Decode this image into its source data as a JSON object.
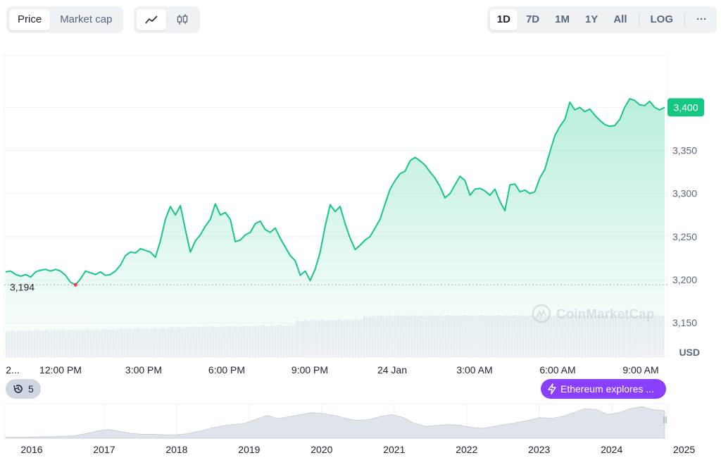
{
  "toolbar": {
    "metric_tabs": [
      {
        "label": "Price",
        "active": true
      },
      {
        "label": "Market cap",
        "active": false
      }
    ],
    "chart_type_icons": [
      "line-chart-icon",
      "candlestick-icon"
    ],
    "ranges": [
      {
        "label": "1D",
        "active": true
      },
      {
        "label": "7D",
        "active": false
      },
      {
        "label": "1M",
        "active": false
      },
      {
        "label": "1Y",
        "active": false
      },
      {
        "label": "All",
        "active": false
      }
    ],
    "log_label": "LOG",
    "more_label": "···"
  },
  "watermark": "CoinMarketCap",
  "currency_label": "USD",
  "event_badge": {
    "icon": "history-icon",
    "count": "5"
  },
  "news_badge": {
    "icon": "lightning-icon",
    "label": "Ethereum explores ..."
  },
  "colors": {
    "line": "#16c784",
    "current_label": "#16c784",
    "low_dot": "#ea3943",
    "news_badge": "#8a3ffc",
    "grid": "#eff2f5",
    "axis_text": "#58667e"
  },
  "chart_data": [
    {
      "type": "line",
      "title": "",
      "y_ticks": [
        3150,
        3200,
        3250,
        3300,
        3350,
        3400
      ],
      "ylim": [
        3110,
        3460
      ],
      "x_ticks": [
        "2...",
        "12:00 PM",
        "3:00 PM",
        "6:00 PM",
        "9:00 PM",
        "24 Jan",
        "3:00 AM",
        "6:00 AM",
        "9:00 AM"
      ],
      "current_value": 3400,
      "current_label": "3,400",
      "reference_value": 3194,
      "reference_label": "3,194",
      "series": [
        {
          "values": [
            3209,
            3210,
            3206,
            3204,
            3206,
            3203,
            3209,
            3211,
            3212,
            3210,
            3212,
            3210,
            3205,
            3197,
            3194,
            3201,
            3210,
            3208,
            3206,
            3209,
            3205,
            3206,
            3210,
            3217,
            3228,
            3232,
            3231,
            3236,
            3234,
            3232,
            3226,
            3245,
            3270,
            3285,
            3275,
            3286,
            3258,
            3232,
            3245,
            3252,
            3262,
            3270,
            3288,
            3275,
            3278,
            3270,
            3244,
            3246,
            3252,
            3255,
            3265,
            3268,
            3258,
            3255,
            3260,
            3248,
            3238,
            3228,
            3222,
            3205,
            3210,
            3199,
            3212,
            3232,
            3262,
            3287,
            3279,
            3285,
            3265,
            3248,
            3235,
            3240,
            3246,
            3250,
            3260,
            3270,
            3288,
            3305,
            3315,
            3323,
            3326,
            3338,
            3342,
            3338,
            3333,
            3325,
            3318,
            3308,
            3295,
            3300,
            3310,
            3320,
            3315,
            3298,
            3305,
            3306,
            3303,
            3298,
            3305,
            3291,
            3280,
            3310,
            3311,
            3302,
            3304,
            3300,
            3302,
            3318,
            3328,
            3348,
            3367,
            3378,
            3386,
            3406,
            3397,
            3400,
            3395,
            3398,
            3391,
            3385,
            3380,
            3378,
            3379,
            3386,
            3400,
            3410,
            3408,
            3403,
            3402,
            3407,
            3400,
            3397,
            3400
          ]
        }
      ]
    },
    {
      "type": "area",
      "title": "",
      "x_ticks": [
        "2016",
        "2017",
        "2018",
        "2019",
        "2020",
        "2021",
        "2022",
        "2023",
        "2024",
        "2025"
      ],
      "values": [
        2,
        2,
        2,
        3,
        3,
        4,
        5,
        9,
        14,
        18,
        14,
        10,
        8,
        8,
        7,
        7,
        9,
        14,
        20,
        25,
        28,
        30,
        38,
        46,
        40,
        44,
        48,
        52,
        50,
        46,
        40,
        36,
        38,
        44,
        48,
        42,
        30,
        24,
        26,
        28,
        26,
        22,
        20,
        24,
        28,
        32,
        36,
        42,
        40,
        44,
        52,
        60,
        58,
        48,
        52,
        60,
        64,
        58,
        56
      ]
    }
  ]
}
